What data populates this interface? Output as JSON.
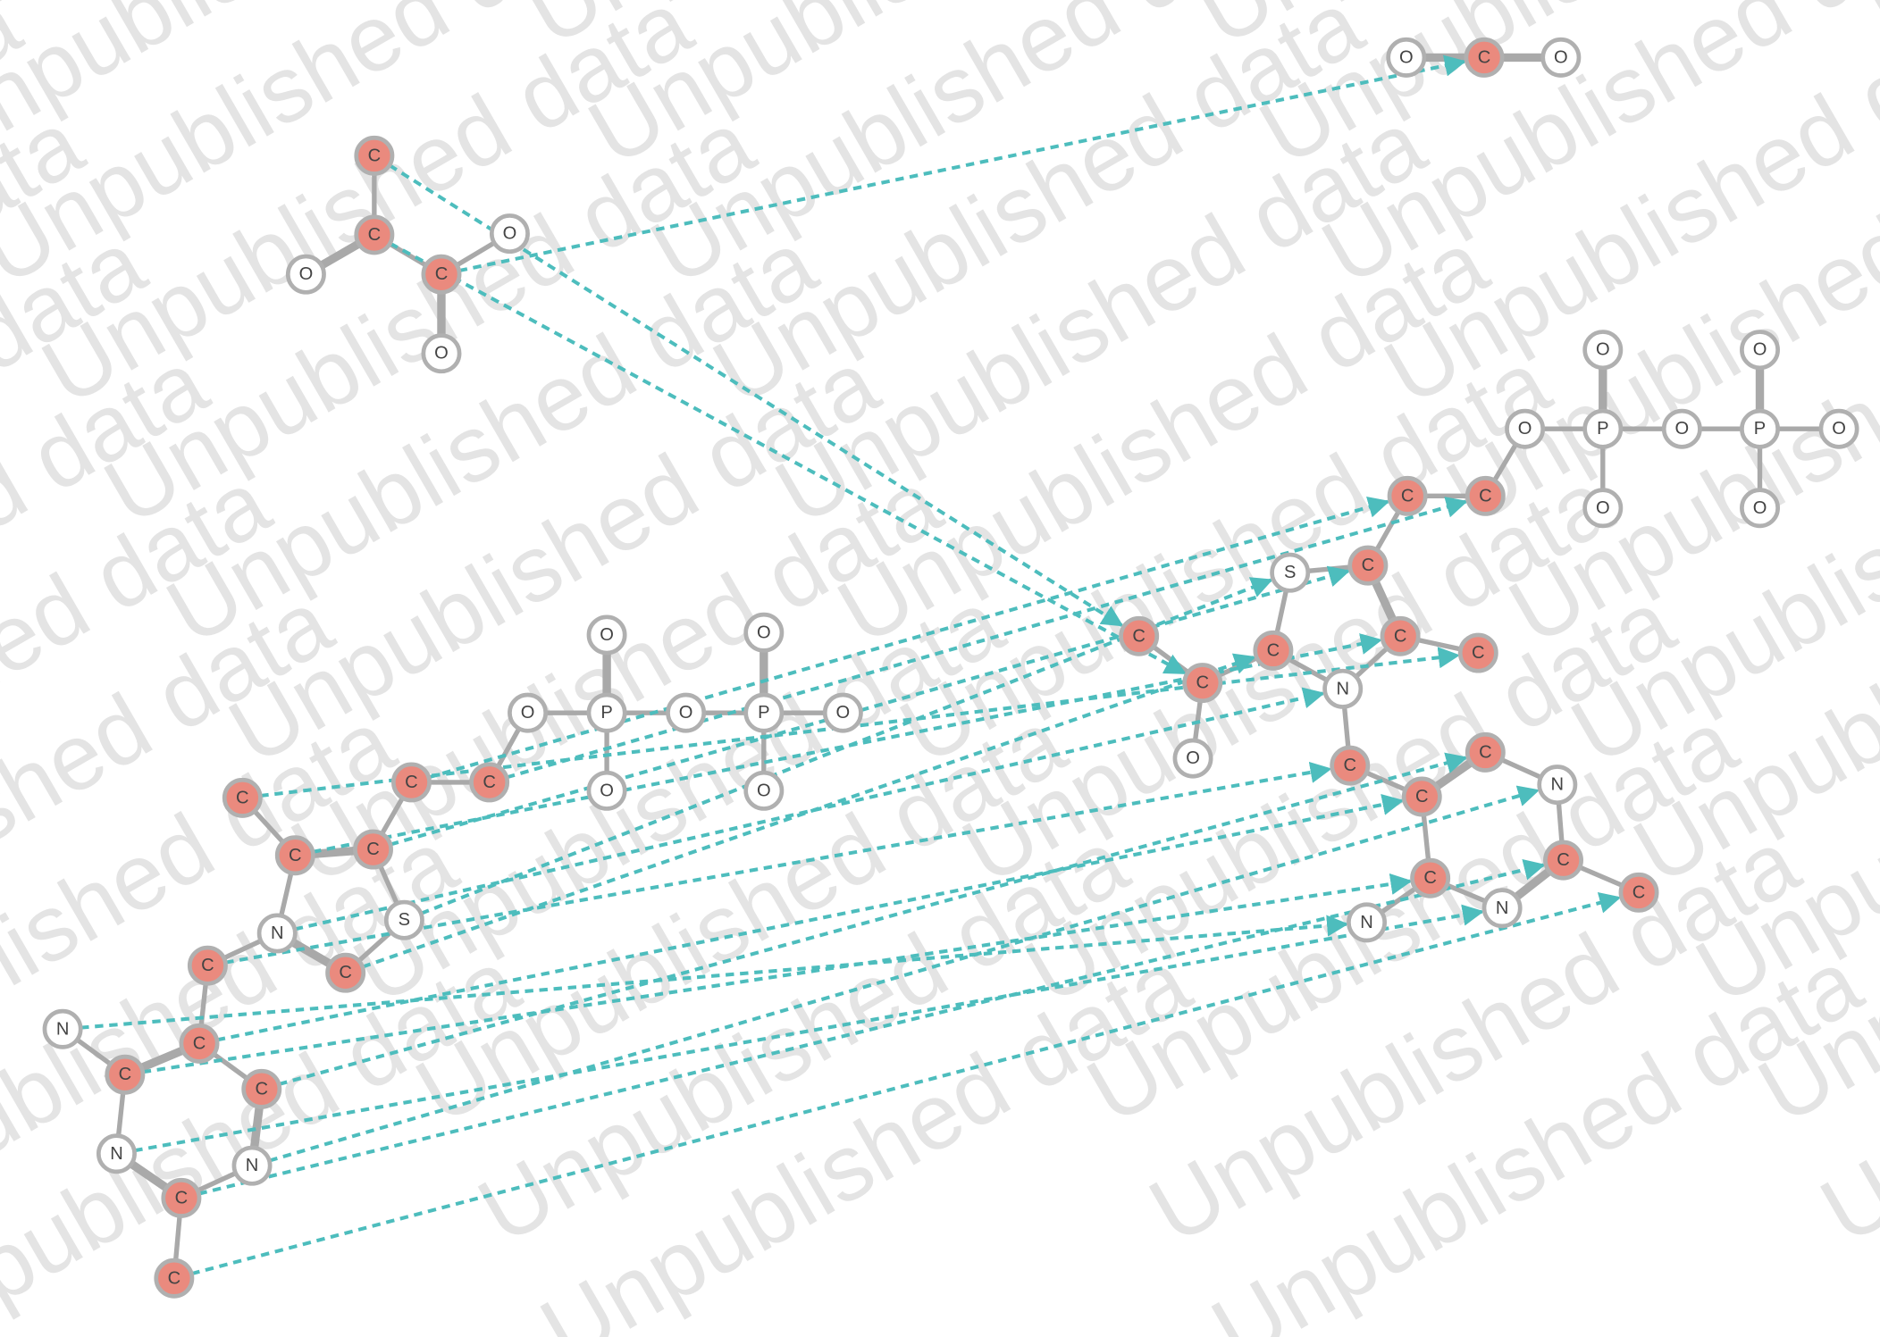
{
  "watermark": "Unpublished data",
  "nodes": [
    {
      "label": "C"
    },
    {
      "label": "C"
    },
    {
      "label": "O"
    },
    {
      "label": "C"
    },
    {
      "label": "O"
    },
    {
      "label": "O"
    },
    {
      "label": "O"
    },
    {
      "label": "C"
    },
    {
      "label": "O"
    },
    {
      "label": "O"
    },
    {
      "label": "P"
    },
    {
      "label": "O"
    },
    {
      "label": "O"
    },
    {
      "label": "O"
    },
    {
      "label": "P"
    },
    {
      "label": "O"
    },
    {
      "label": "O"
    },
    {
      "label": "O"
    },
    {
      "label": "C"
    },
    {
      "label": "C"
    },
    {
      "label": "C"
    },
    {
      "label": "C"
    },
    {
      "label": "C"
    },
    {
      "label": "N"
    },
    {
      "label": "S"
    },
    {
      "label": "C"
    },
    {
      "label": "C"
    },
    {
      "label": "C"
    },
    {
      "label": "N"
    },
    {
      "label": "C"
    },
    {
      "label": "C"
    },
    {
      "label": "N"
    },
    {
      "label": "N"
    },
    {
      "label": "C"
    },
    {
      "label": "C"
    },
    {
      "label": "O"
    },
    {
      "label": "P"
    },
    {
      "label": "O"
    },
    {
      "label": "O"
    },
    {
      "label": "O"
    },
    {
      "label": "P"
    },
    {
      "label": "O"
    },
    {
      "label": "O"
    },
    {
      "label": "O"
    },
    {
      "label": "C"
    },
    {
      "label": "C"
    },
    {
      "label": "S"
    },
    {
      "label": "C"
    },
    {
      "label": "C"
    },
    {
      "label": "C"
    },
    {
      "label": "N"
    },
    {
      "label": "C"
    },
    {
      "label": "C"
    },
    {
      "label": "O"
    },
    {
      "label": "C"
    },
    {
      "label": "C"
    },
    {
      "label": "C"
    },
    {
      "label": "C"
    },
    {
      "label": "N"
    },
    {
      "label": "C"
    },
    {
      "label": "C"
    },
    {
      "label": "N"
    },
    {
      "label": "C"
    },
    {
      "label": "N"
    }
  ]
}
